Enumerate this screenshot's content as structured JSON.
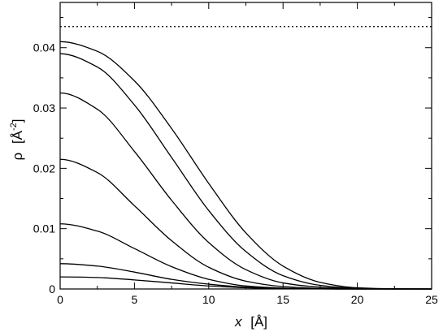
{
  "chart_data": {
    "type": "line",
    "xlabel": "x",
    "ylabel": "ρ",
    "xunit": "Å",
    "yunit": "Å",
    "yunit_exponent": "-2",
    "xlim": [
      0,
      25
    ],
    "ylim": [
      0,
      0.0475
    ],
    "x_ticks": [
      "0",
      "5",
      "10",
      "15",
      "20",
      "25"
    ],
    "y_ticks": [
      "0",
      "0.01",
      "0.02",
      "0.03",
      "0.04"
    ],
    "grid": false,
    "reference_line": {
      "y": 0.0435,
      "style": "dotted"
    },
    "series": [
      {
        "x": [
          0,
          2.5,
          5,
          7.5,
          10,
          12.5,
          15,
          17.5,
          20,
          22.5,
          25
        ],
        "y": [
          0.041,
          0.0394,
          0.0345,
          0.0266,
          0.0175,
          0.0093,
          0.0038,
          0.0011,
          0.0002,
          3e-05,
          0
        ]
      },
      {
        "x": [
          0,
          2.5,
          5,
          7.5,
          10,
          12.5,
          15,
          17.5,
          20,
          22.5,
          25
        ],
        "y": [
          0.039,
          0.0368,
          0.0305,
          0.0218,
          0.013,
          0.0062,
          0.0022,
          0.0006,
          0.0001,
          1e-05,
          0
        ]
      },
      {
        "x": [
          0,
          2.5,
          5,
          7.5,
          10,
          12.5,
          15,
          17.5,
          20,
          22.5,
          25
        ],
        "y": [
          0.0325,
          0.0298,
          0.0228,
          0.0147,
          0.0077,
          0.0032,
          0.001,
          0.0003,
          5e-05,
          0,
          0
        ]
      },
      {
        "x": [
          0,
          2.5,
          5,
          7.5,
          10,
          12.5,
          15,
          17.5,
          20,
          22.5,
          25
        ],
        "y": [
          0.0215,
          0.0193,
          0.0138,
          0.008,
          0.0036,
          0.0013,
          0.0004,
          0.0001,
          1e-05,
          0,
          0
        ]
      },
      {
        "x": [
          0,
          2.5,
          5,
          7.5,
          10,
          12.5,
          15,
          17.5,
          20,
          22.5,
          25
        ],
        "y": [
          0.0108,
          0.0096,
          0.0067,
          0.0037,
          0.0016,
          0.0005,
          0.00015,
          3e-05,
          0,
          0,
          0
        ]
      },
      {
        "x": [
          0,
          2.5,
          5,
          7.5,
          10,
          12.5,
          15,
          17.5,
          20,
          22.5,
          25
        ],
        "y": [
          0.0042,
          0.0038,
          0.0028,
          0.0016,
          0.0008,
          0.0003,
          0.0001,
          2e-05,
          0,
          0,
          0
        ]
      },
      {
        "x": [
          0,
          2.5,
          5,
          7.5,
          10,
          12.5,
          15,
          17.5,
          20,
          22.5,
          25
        ],
        "y": [
          0.002,
          0.0019,
          0.0015,
          0.001,
          0.0005,
          0.0002,
          7e-05,
          2e-05,
          0,
          0,
          0
        ]
      }
    ]
  }
}
